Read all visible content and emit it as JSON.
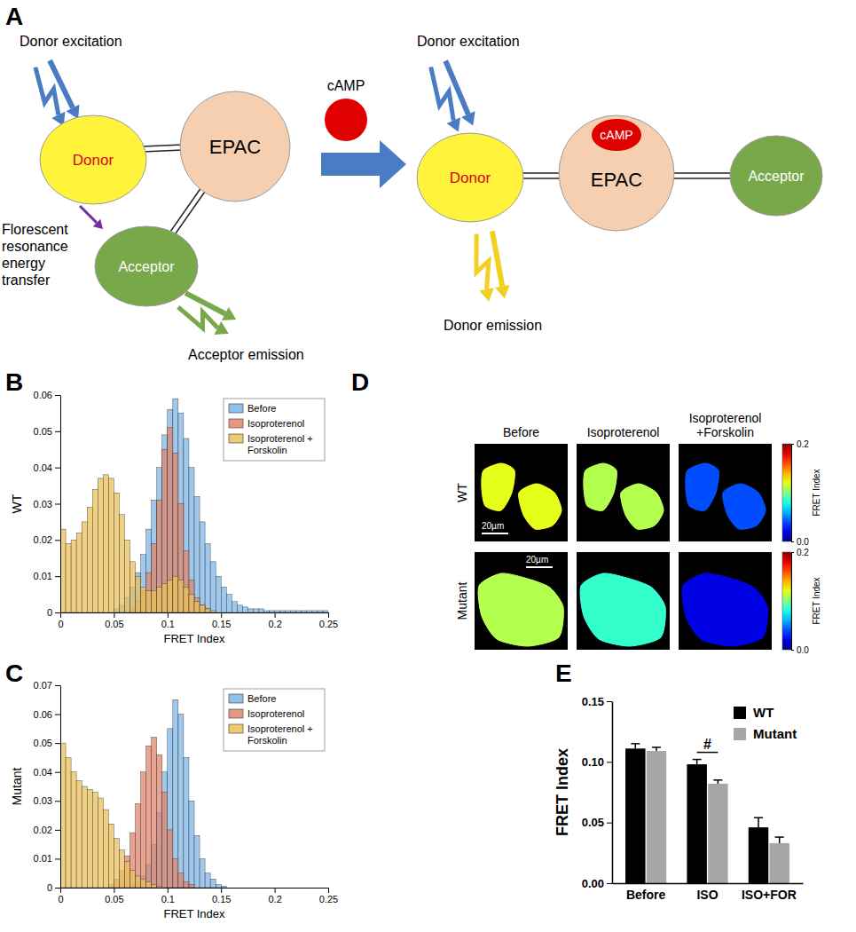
{
  "panel_labels": [
    "A",
    "B",
    "C",
    "D",
    "E"
  ],
  "diagram": {
    "before": {
      "excitation": "Donor excitation",
      "donor": "Donor",
      "core": "EPAC",
      "acceptor": "Acceptor",
      "transfer": "Florescent resonance energy transfer",
      "emission": "Acceptor emission"
    },
    "ligand": "cAMP",
    "after": {
      "excitation": "Donor excitation",
      "donor": "Donor",
      "core": "EPAC",
      "bound": "cAMP",
      "acceptor": "Acceptor",
      "emission": "Donor emission"
    }
  },
  "chart_data": [
    {
      "type": "histogram",
      "ylabel": "WT",
      "xlabel": "FRET Index",
      "bins": [
        0,
        0.005,
        0.01,
        0.015,
        0.02,
        0.025,
        0.03,
        0.035,
        0.04,
        0.045,
        0.05,
        0.055,
        0.06,
        0.065,
        0.07,
        0.075,
        0.08,
        0.085,
        0.09,
        0.095,
        0.1,
        0.105,
        0.11,
        0.115,
        0.12,
        0.125,
        0.13,
        0.135,
        0.14,
        0.145,
        0.15,
        0.155,
        0.16,
        0.165,
        0.17,
        0.175,
        0.18,
        0.185,
        0.19,
        0.195,
        0.2,
        0.205,
        0.21,
        0.215,
        0.22,
        0.225,
        0.23,
        0.235,
        0.24,
        0.245,
        0.25
      ],
      "xlim": [
        0,
        0.25
      ],
      "xticks": [
        0,
        0.05,
        0.1,
        0.15,
        0.2,
        0.25
      ],
      "ylim": [
        0,
        0.06
      ],
      "yticks": [
        0,
        0.01,
        0.02,
        0.03,
        0.04,
        0.05,
        0.06
      ],
      "legend": "upper right",
      "series": [
        {
          "name": "Before",
          "color": "#7eb6e6",
          "values": [
            0,
            0,
            0,
            0,
            0,
            0,
            0,
            0,
            0,
            0,
            0.001,
            0.002,
            0.004,
            0.007,
            0.011,
            0.016,
            0.023,
            0.031,
            0.04,
            0.049,
            0.056,
            0.059,
            0.055,
            0.048,
            0.04,
            0.032,
            0.025,
            0.019,
            0.014,
            0.01,
            0.007,
            0.005,
            0.003,
            0.002,
            0.0015,
            0.001,
            0.001,
            0.001,
            0.0005,
            0.0005,
            0.0005,
            0.0005,
            0.0005,
            0.0005,
            0.0005,
            0.0005,
            0.0005,
            0.0005,
            0.0005,
            0.0005
          ]
        },
        {
          "name": "Isoproterenol",
          "color": "#e0866c",
          "values": [
            0,
            0,
            0,
            0,
            0,
            0,
            0,
            0,
            0,
            0,
            0,
            0,
            0,
            0.001,
            0.003,
            0.006,
            0.011,
            0.019,
            0.031,
            0.045,
            0.051,
            0.044,
            0.03,
            0.017,
            0.009,
            0.004,
            0.002,
            0.001,
            0,
            0,
            0,
            0,
            0,
            0,
            0,
            0,
            0,
            0,
            0,
            0,
            0,
            0,
            0,
            0,
            0,
            0,
            0,
            0,
            0,
            0
          ]
        },
        {
          "name": "Isoproterenol + Forskolin",
          "color": "#ebc15a",
          "values": [
            0.023,
            0.019,
            0.02,
            0.022,
            0.025,
            0.029,
            0.034,
            0.037,
            0.038,
            0.037,
            0.033,
            0.027,
            0.02,
            0.014,
            0.01,
            0.007,
            0.006,
            0.006,
            0.007,
            0.008,
            0.009,
            0.01,
            0.009,
            0.007,
            0.005,
            0.003,
            0.002,
            0.001,
            0.0005,
            0,
            0,
            0,
            0,
            0,
            0,
            0,
            0,
            0,
            0,
            0,
            0,
            0,
            0,
            0,
            0,
            0,
            0,
            0,
            0,
            0
          ]
        }
      ]
    },
    {
      "type": "histogram",
      "ylabel": "Mutant",
      "xlabel": "FRET Index",
      "bins": [
        0,
        0.005,
        0.01,
        0.015,
        0.02,
        0.025,
        0.03,
        0.035,
        0.04,
        0.045,
        0.05,
        0.055,
        0.06,
        0.065,
        0.07,
        0.075,
        0.08,
        0.085,
        0.09,
        0.095,
        0.1,
        0.105,
        0.11,
        0.115,
        0.12,
        0.125,
        0.13,
        0.135,
        0.14,
        0.145,
        0.15,
        0.155,
        0.16,
        0.165,
        0.17,
        0.175,
        0.18,
        0.185,
        0.19,
        0.195,
        0.2,
        0.205,
        0.21,
        0.215,
        0.22,
        0.225,
        0.23,
        0.235,
        0.24,
        0.245,
        0.25
      ],
      "xlim": [
        0,
        0.25
      ],
      "xticks": [
        0,
        0.05,
        0.1,
        0.15,
        0.2,
        0.25
      ],
      "ylim": [
        0,
        0.07
      ],
      "yticks": [
        0,
        0.01,
        0.02,
        0.03,
        0.04,
        0.05,
        0.06,
        0.07
      ],
      "legend": "upper right",
      "series": [
        {
          "name": "Before",
          "color": "#7eb6e6",
          "values": [
            0,
            0,
            0,
            0,
            0,
            0,
            0,
            0,
            0,
            0,
            0,
            0,
            0,
            0.001,
            0.002,
            0.004,
            0.008,
            0.015,
            0.026,
            0.04,
            0.055,
            0.065,
            0.06,
            0.045,
            0.03,
            0.018,
            0.01,
            0.005,
            0.003,
            0.001,
            0.0005,
            0,
            0,
            0,
            0,
            0,
            0,
            0,
            0,
            0,
            0,
            0,
            0,
            0,
            0,
            0,
            0,
            0,
            0,
            0
          ]
        },
        {
          "name": "Isoproterenol",
          "color": "#e0866c",
          "values": [
            0,
            0,
            0,
            0,
            0,
            0,
            0,
            0,
            0,
            0.001,
            0.003,
            0.006,
            0.011,
            0.019,
            0.029,
            0.04,
            0.049,
            0.052,
            0.046,
            0.033,
            0.02,
            0.01,
            0.005,
            0.002,
            0.001,
            0,
            0,
            0,
            0,
            0,
            0,
            0,
            0,
            0,
            0,
            0,
            0,
            0,
            0,
            0,
            0,
            0,
            0,
            0,
            0,
            0,
            0,
            0,
            0,
            0
          ]
        },
        {
          "name": "Isoproterenol + Forskolin",
          "color": "#ebc15a",
          "values": [
            0.05,
            0.045,
            0.04,
            0.037,
            0.035,
            0.034,
            0.033,
            0.031,
            0.027,
            0.022,
            0.017,
            0.013,
            0.009,
            0.006,
            0.004,
            0.003,
            0.002,
            0.001,
            0.0005,
            0,
            0,
            0,
            0,
            0,
            0,
            0,
            0,
            0,
            0,
            0,
            0,
            0,
            0,
            0,
            0,
            0,
            0,
            0,
            0,
            0,
            0,
            0,
            0,
            0,
            0,
            0,
            0,
            0,
            0,
            0
          ]
        }
      ]
    },
    {
      "type": "image",
      "columns": [
        "Before",
        "Isoproterenol",
        "Isoproterenol +Forskolin"
      ],
      "rows": [
        "WT",
        "Mutant"
      ],
      "values": [
        [
          0.12,
          0.11,
          0.04
        ],
        [
          0.11,
          0.085,
          0.02
        ]
      ],
      "scale_bar": "20µm",
      "colorbar": {
        "label": "FRET Index",
        "range": [
          0,
          0.2
        ],
        "ticks": [
          {
            "value": 0,
            "label": "0.0"
          },
          {
            "value": 0.2,
            "label": "0.2"
          }
        ]
      }
    },
    {
      "type": "bar",
      "ylabel": "FRET Index",
      "categories": [
        "Before",
        "ISO",
        "ISO+FOR"
      ],
      "ylim": [
        0,
        0.15
      ],
      "yticks": [
        {
          "value": 0,
          "label": "0.00"
        },
        {
          "value": 0.05,
          "label": "0.05"
        },
        {
          "value": 0.1,
          "label": "0.10"
        },
        {
          "value": 0.15,
          "label": "0.15"
        }
      ],
      "legend": "upper right",
      "series": [
        {
          "name": "WT",
          "color": "#000000",
          "values": [
            0.111,
            0.098,
            0.046
          ],
          "errors": [
            0.004,
            0.004,
            0.008
          ]
        },
        {
          "name": "Mutant",
          "color": "#a6a6a6",
          "values": [
            0.109,
            0.082,
            0.033
          ],
          "errors": [
            0.003,
            0.003,
            0.005
          ]
        }
      ],
      "annotations": [
        {
          "text": "#",
          "category": "ISO"
        }
      ]
    }
  ]
}
